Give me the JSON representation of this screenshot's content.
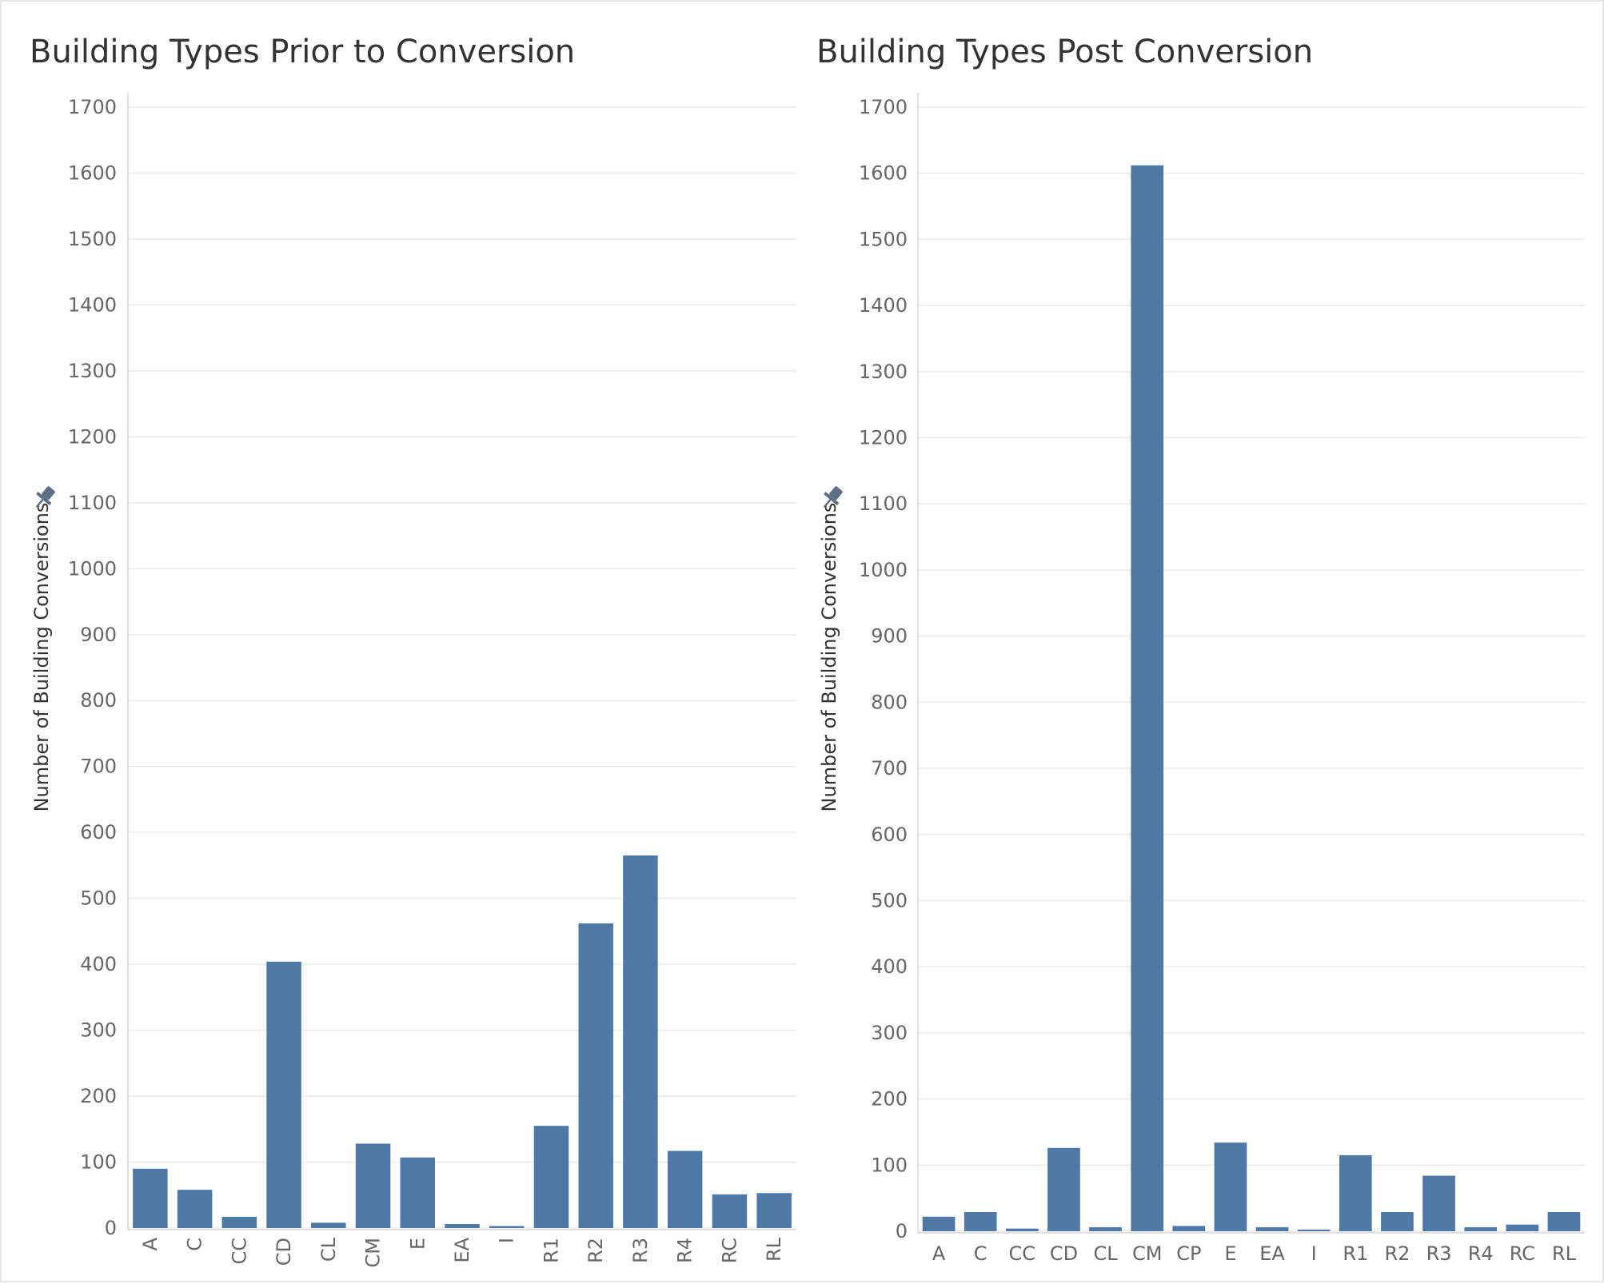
{
  "colors": {
    "bar": "#4e79a7",
    "grid": "#ebebeb",
    "axis": "#d8d8d8",
    "pin": "#5c6f85"
  },
  "chart_data": [
    {
      "type": "bar",
      "title": "Building Types Prior to Conversion",
      "xlabel": "",
      "ylabel": "Number of Building Conversions",
      "ylim": [
        0,
        1700
      ],
      "yticks": [
        0,
        100,
        200,
        300,
        400,
        500,
        600,
        700,
        800,
        900,
        1000,
        1100,
        1200,
        1300,
        1400,
        1500,
        1600,
        1700
      ],
      "categories": [
        "A",
        "C",
        "CC",
        "CD",
        "CL",
        "CM",
        "E",
        "EA",
        "I",
        "R1",
        "R2",
        "R3",
        "R4",
        "RC",
        "RL"
      ],
      "values": [
        90,
        58,
        17,
        404,
        8,
        128,
        107,
        6,
        3,
        155,
        462,
        565,
        117,
        51,
        53
      ],
      "grid": true,
      "x_tick_rotation": "vertical",
      "pin_icon": "pin-icon"
    },
    {
      "type": "bar",
      "title": "Building Types Post Conversion",
      "xlabel": "",
      "ylabel": "Number of Building Conversions",
      "ylim": [
        0,
        1700
      ],
      "yticks": [
        0,
        100,
        200,
        300,
        400,
        500,
        600,
        700,
        800,
        900,
        1000,
        1100,
        1200,
        1300,
        1400,
        1500,
        1600,
        1700
      ],
      "categories": [
        "A",
        "C",
        "CC",
        "CD",
        "CL",
        "CM",
        "CP",
        "E",
        "EA",
        "I",
        "R1",
        "R2",
        "R3",
        "R4",
        "RC",
        "RL"
      ],
      "values": [
        22,
        29,
        4,
        126,
        6,
        1612,
        8,
        134,
        6,
        1,
        115,
        29,
        84,
        6,
        10,
        29
      ],
      "grid": true,
      "x_tick_rotation": "horizontal",
      "pin_icon": "pin-icon"
    }
  ]
}
